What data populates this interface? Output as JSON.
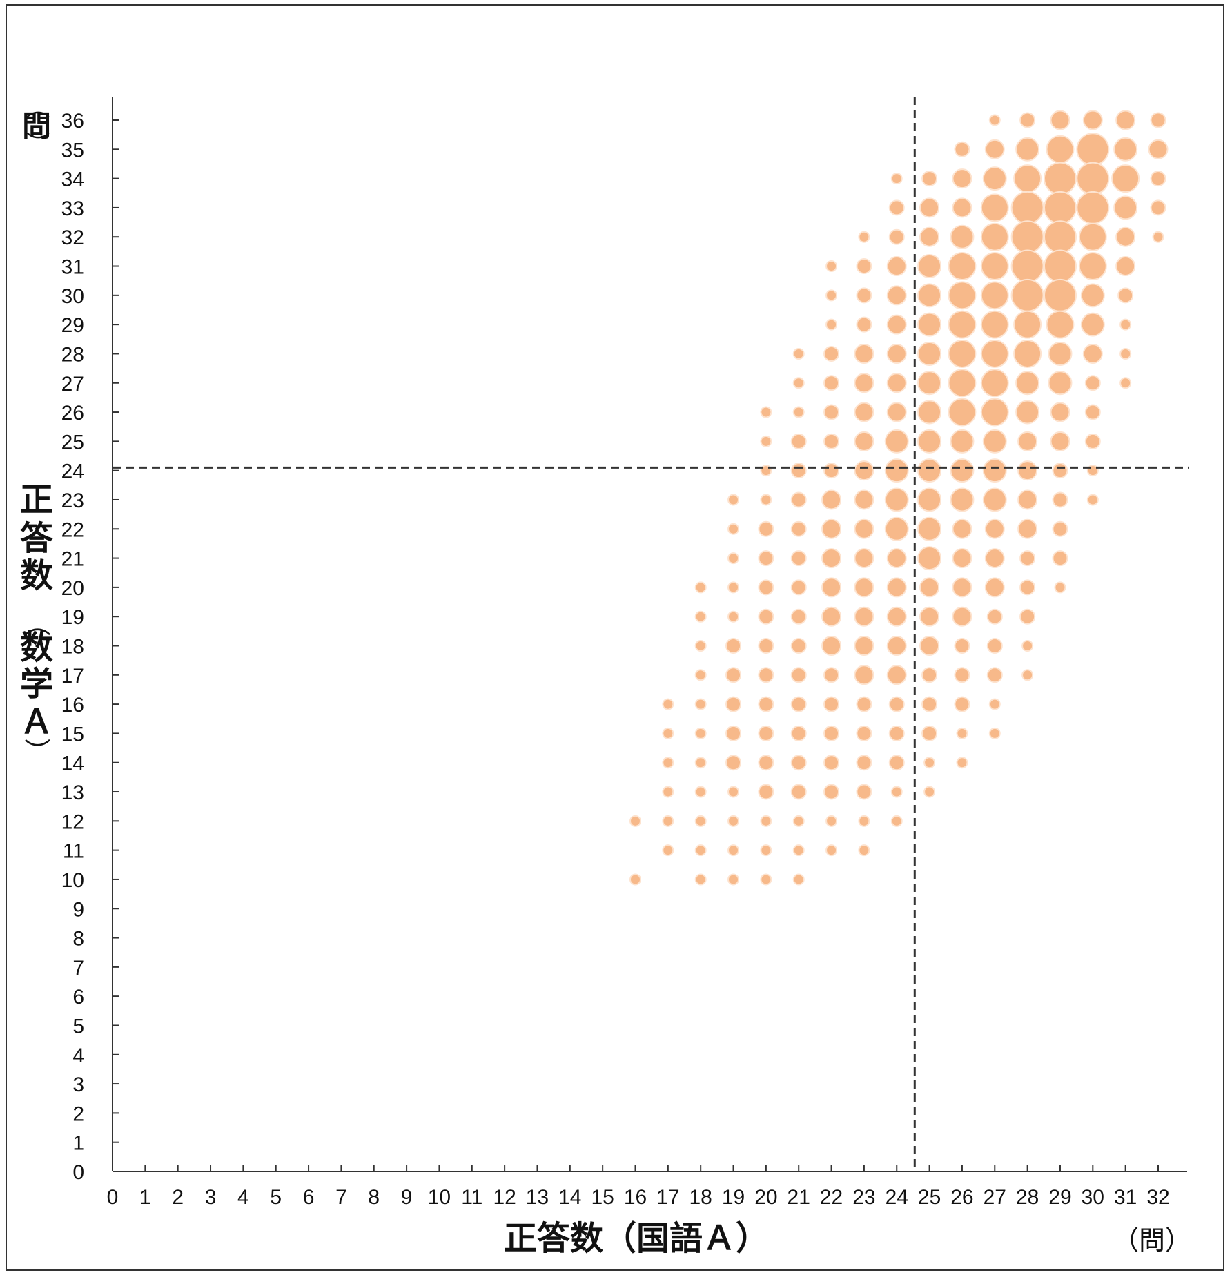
{
  "chart_data": {
    "type": "scatter",
    "subtype": "bubble",
    "xlabel": "正答数（国語Ａ）",
    "xunit": "（問）",
    "ylabel_chars": [
      "（",
      "問",
      "）",
      "正",
      "答",
      "数",
      "（",
      "数",
      "学",
      "Ａ",
      "）"
    ],
    "xlim": [
      0,
      32
    ],
    "ylim": [
      0,
      36
    ],
    "xticks": [
      "0",
      "1",
      "2",
      "3",
      "4",
      "5",
      "6",
      "7",
      "8",
      "9",
      "10",
      "11",
      "12",
      "13",
      "14",
      "15",
      "16",
      "17",
      "18",
      "19",
      "20",
      "21",
      "22",
      "23",
      "24",
      "25",
      "26",
      "27",
      "28",
      "29",
      "30",
      "31",
      "32"
    ],
    "yticks": [
      "0",
      "1",
      "2",
      "3",
      "4",
      "5",
      "6",
      "7",
      "8",
      "9",
      "10",
      "11",
      "12",
      "13",
      "14",
      "15",
      "16",
      "17",
      "18",
      "19",
      "20",
      "21",
      "22",
      "23",
      "24",
      "25",
      "26",
      "27",
      "28",
      "29",
      "30",
      "31",
      "32",
      "33",
      "34",
      "35",
      "36"
    ],
    "reference_lines": {
      "x": 24.55,
      "y": 24.1,
      "style": "dashed"
    },
    "bubble_color": "#f7b98a",
    "bubble_edge": "#fde3cf",
    "grid": false,
    "size_scale": "relative bubble size 1-7",
    "points": [
      [
        16,
        12,
        2
      ],
      [
        16,
        10,
        2
      ],
      [
        17,
        16,
        2
      ],
      [
        17,
        15,
        2
      ],
      [
        17,
        14,
        2
      ],
      [
        17,
        13,
        2
      ],
      [
        17,
        12,
        2
      ],
      [
        17,
        11,
        2
      ],
      [
        18,
        20,
        2
      ],
      [
        18,
        19,
        2
      ],
      [
        18,
        18,
        2
      ],
      [
        18,
        17,
        2
      ],
      [
        18,
        16,
        2
      ],
      [
        18,
        15,
        2
      ],
      [
        18,
        14,
        2
      ],
      [
        18,
        13,
        2
      ],
      [
        18,
        12,
        2
      ],
      [
        18,
        11,
        2
      ],
      [
        18,
        10,
        2
      ],
      [
        19,
        23,
        2
      ],
      [
        19,
        22,
        2
      ],
      [
        19,
        21,
        2
      ],
      [
        19,
        20,
        2
      ],
      [
        19,
        19,
        2
      ],
      [
        19,
        18,
        3
      ],
      [
        19,
        17,
        3
      ],
      [
        19,
        16,
        3
      ],
      [
        19,
        15,
        3
      ],
      [
        19,
        14,
        3
      ],
      [
        19,
        13,
        2
      ],
      [
        19,
        12,
        2
      ],
      [
        19,
        11,
        2
      ],
      [
        19,
        10,
        2
      ],
      [
        20,
        26,
        2
      ],
      [
        20,
        25,
        2
      ],
      [
        20,
        24,
        2
      ],
      [
        20,
        23,
        2
      ],
      [
        20,
        22,
        3
      ],
      [
        20,
        21,
        3
      ],
      [
        20,
        20,
        3
      ],
      [
        20,
        19,
        3
      ],
      [
        20,
        18,
        3
      ],
      [
        20,
        17,
        3
      ],
      [
        20,
        16,
        3
      ],
      [
        20,
        15,
        3
      ],
      [
        20,
        14,
        3
      ],
      [
        20,
        13,
        3
      ],
      [
        20,
        12,
        2
      ],
      [
        20,
        11,
        2
      ],
      [
        20,
        10,
        2
      ],
      [
        21,
        28,
        2
      ],
      [
        21,
        27,
        2
      ],
      [
        21,
        26,
        2
      ],
      [
        21,
        25,
        3
      ],
      [
        21,
        24,
        3
      ],
      [
        21,
        23,
        3
      ],
      [
        21,
        22,
        3
      ],
      [
        21,
        21,
        3
      ],
      [
        21,
        20,
        3
      ],
      [
        21,
        19,
        3
      ],
      [
        21,
        18,
        3
      ],
      [
        21,
        17,
        3
      ],
      [
        21,
        16,
        3
      ],
      [
        21,
        15,
        3
      ],
      [
        21,
        14,
        3
      ],
      [
        21,
        13,
        3
      ],
      [
        21,
        12,
        2
      ],
      [
        21,
        11,
        2
      ],
      [
        21,
        10,
        2
      ],
      [
        22,
        31,
        2
      ],
      [
        22,
        30,
        2
      ],
      [
        22,
        29,
        2
      ],
      [
        22,
        28,
        3
      ],
      [
        22,
        27,
        3
      ],
      [
        22,
        26,
        3
      ],
      [
        22,
        25,
        3
      ],
      [
        22,
        24,
        3
      ],
      [
        22,
        23,
        4
      ],
      [
        22,
        22,
        4
      ],
      [
        22,
        21,
        4
      ],
      [
        22,
        20,
        4
      ],
      [
        22,
        19,
        4
      ],
      [
        22,
        18,
        4
      ],
      [
        22,
        17,
        3
      ],
      [
        22,
        16,
        3
      ],
      [
        22,
        15,
        3
      ],
      [
        22,
        14,
        3
      ],
      [
        22,
        13,
        3
      ],
      [
        22,
        12,
        2
      ],
      [
        22,
        11,
        2
      ],
      [
        23,
        32,
        2
      ],
      [
        23,
        31,
        3
      ],
      [
        23,
        30,
        3
      ],
      [
        23,
        29,
        3
      ],
      [
        23,
        28,
        4
      ],
      [
        23,
        27,
        4
      ],
      [
        23,
        26,
        4
      ],
      [
        23,
        25,
        4
      ],
      [
        23,
        24,
        4
      ],
      [
        23,
        23,
        4
      ],
      [
        23,
        22,
        4
      ],
      [
        23,
        21,
        4
      ],
      [
        23,
        20,
        4
      ],
      [
        23,
        19,
        4
      ],
      [
        23,
        18,
        4
      ],
      [
        23,
        17,
        4
      ],
      [
        23,
        16,
        3
      ],
      [
        23,
        15,
        3
      ],
      [
        23,
        14,
        3
      ],
      [
        23,
        13,
        3
      ],
      [
        23,
        12,
        2
      ],
      [
        23,
        11,
        2
      ],
      [
        24,
        34,
        2
      ],
      [
        24,
        33,
        3
      ],
      [
        24,
        32,
        3
      ],
      [
        24,
        31,
        4
      ],
      [
        24,
        30,
        4
      ],
      [
        24,
        29,
        4
      ],
      [
        24,
        28,
        4
      ],
      [
        24,
        27,
        4
      ],
      [
        24,
        26,
        4
      ],
      [
        24,
        25,
        5
      ],
      [
        24,
        24,
        5
      ],
      [
        24,
        23,
        5
      ],
      [
        24,
        22,
        5
      ],
      [
        24,
        21,
        4
      ],
      [
        24,
        20,
        4
      ],
      [
        24,
        19,
        4
      ],
      [
        24,
        18,
        4
      ],
      [
        24,
        17,
        4
      ],
      [
        24,
        16,
        3
      ],
      [
        24,
        15,
        3
      ],
      [
        24,
        14,
        3
      ],
      [
        24,
        13,
        2
      ],
      [
        24,
        12,
        2
      ],
      [
        25,
        34,
        3
      ],
      [
        25,
        33,
        4
      ],
      [
        25,
        32,
        4
      ],
      [
        25,
        31,
        5
      ],
      [
        25,
        30,
        5
      ],
      [
        25,
        29,
        5
      ],
      [
        25,
        28,
        5
      ],
      [
        25,
        27,
        5
      ],
      [
        25,
        26,
        5
      ],
      [
        25,
        25,
        5
      ],
      [
        25,
        24,
        5
      ],
      [
        25,
        23,
        5
      ],
      [
        25,
        22,
        5
      ],
      [
        25,
        21,
        5
      ],
      [
        25,
        20,
        4
      ],
      [
        25,
        19,
        4
      ],
      [
        25,
        18,
        4
      ],
      [
        25,
        17,
        3
      ],
      [
        25,
        16,
        3
      ],
      [
        25,
        15,
        3
      ],
      [
        25,
        14,
        2
      ],
      [
        25,
        13,
        2
      ],
      [
        26,
        35,
        3
      ],
      [
        26,
        34,
        4
      ],
      [
        26,
        33,
        4
      ],
      [
        26,
        32,
        5
      ],
      [
        26,
        31,
        6
      ],
      [
        26,
        30,
        6
      ],
      [
        26,
        29,
        6
      ],
      [
        26,
        28,
        6
      ],
      [
        26,
        27,
        6
      ],
      [
        26,
        26,
        6
      ],
      [
        26,
        25,
        5
      ],
      [
        26,
        24,
        5
      ],
      [
        26,
        23,
        5
      ],
      [
        26,
        22,
        4
      ],
      [
        26,
        21,
        4
      ],
      [
        26,
        20,
        4
      ],
      [
        26,
        19,
        4
      ],
      [
        26,
        18,
        3
      ],
      [
        26,
        17,
        3
      ],
      [
        26,
        16,
        3
      ],
      [
        26,
        15,
        2
      ],
      [
        26,
        14,
        2
      ],
      [
        27,
        36,
        2
      ],
      [
        27,
        35,
        4
      ],
      [
        27,
        34,
        5
      ],
      [
        27,
        33,
        6
      ],
      [
        27,
        32,
        6
      ],
      [
        27,
        31,
        6
      ],
      [
        27,
        30,
        6
      ],
      [
        27,
        29,
        6
      ],
      [
        27,
        28,
        6
      ],
      [
        27,
        27,
        6
      ],
      [
        27,
        26,
        6
      ],
      [
        27,
        25,
        5
      ],
      [
        27,
        24,
        5
      ],
      [
        27,
        23,
        5
      ],
      [
        27,
        22,
        4
      ],
      [
        27,
        21,
        4
      ],
      [
        27,
        20,
        4
      ],
      [
        27,
        19,
        3
      ],
      [
        27,
        18,
        3
      ],
      [
        27,
        17,
        3
      ],
      [
        27,
        16,
        2
      ],
      [
        27,
        15,
        2
      ],
      [
        28,
        36,
        3
      ],
      [
        28,
        35,
        5
      ],
      [
        28,
        34,
        6
      ],
      [
        28,
        33,
        7
      ],
      [
        28,
        32,
        7
      ],
      [
        28,
        31,
        7
      ],
      [
        28,
        30,
        7
      ],
      [
        28,
        29,
        6
      ],
      [
        28,
        28,
        6
      ],
      [
        28,
        27,
        5
      ],
      [
        28,
        26,
        5
      ],
      [
        28,
        25,
        4
      ],
      [
        28,
        24,
        4
      ],
      [
        28,
        23,
        4
      ],
      [
        28,
        22,
        4
      ],
      [
        28,
        21,
        3
      ],
      [
        28,
        20,
        3
      ],
      [
        28,
        19,
        3
      ],
      [
        28,
        18,
        2
      ],
      [
        28,
        17,
        2
      ],
      [
        29,
        36,
        4
      ],
      [
        29,
        35,
        6
      ],
      [
        29,
        34,
        7
      ],
      [
        29,
        33,
        7
      ],
      [
        29,
        32,
        7
      ],
      [
        29,
        31,
        7
      ],
      [
        29,
        30,
        7
      ],
      [
        29,
        29,
        6
      ],
      [
        29,
        28,
        5
      ],
      [
        29,
        27,
        5
      ],
      [
        29,
        26,
        4
      ],
      [
        29,
        25,
        4
      ],
      [
        29,
        24,
        3
      ],
      [
        29,
        23,
        3
      ],
      [
        29,
        22,
        3
      ],
      [
        29,
        21,
        3
      ],
      [
        29,
        20,
        2
      ],
      [
        30,
        36,
        4
      ],
      [
        30,
        35,
        7
      ],
      [
        30,
        34,
        7
      ],
      [
        30,
        33,
        7
      ],
      [
        30,
        32,
        6
      ],
      [
        30,
        31,
        6
      ],
      [
        30,
        30,
        5
      ],
      [
        30,
        29,
        5
      ],
      [
        30,
        28,
        4
      ],
      [
        30,
        27,
        3
      ],
      [
        30,
        26,
        3
      ],
      [
        30,
        25,
        3
      ],
      [
        30,
        24,
        2
      ],
      [
        30,
        23,
        2
      ],
      [
        31,
        36,
        4
      ],
      [
        31,
        35,
        5
      ],
      [
        31,
        34,
        6
      ],
      [
        31,
        33,
        5
      ],
      [
        31,
        32,
        4
      ],
      [
        31,
        31,
        4
      ],
      [
        31,
        30,
        3
      ],
      [
        31,
        29,
        2
      ],
      [
        31,
        28,
        2
      ],
      [
        31,
        27,
        2
      ],
      [
        32,
        36,
        3
      ],
      [
        32,
        35,
        4
      ],
      [
        32,
        34,
        3
      ],
      [
        32,
        33,
        3
      ],
      [
        32,
        32,
        2
      ]
    ]
  }
}
